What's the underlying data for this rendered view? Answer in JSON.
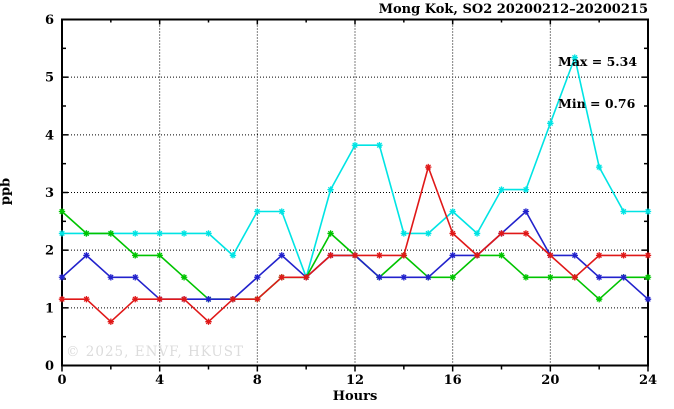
{
  "header": {
    "title": "Mong Kok, SO2 20200212–20200215"
  },
  "annotations": {
    "max": "Max = 5.34",
    "min": "Min = 0.76"
  },
  "watermark": "© 2025, ENVF, HKUST",
  "chart_data": {
    "type": "line",
    "title": "Mong Kok, SO2 20200212–20200215",
    "xlabel": "Hours",
    "ylabel": "ppb",
    "xlim": [
      0,
      24
    ],
    "ylim": [
      0,
      6
    ],
    "xticks": [
      0,
      4,
      8,
      12,
      16,
      20,
      24
    ],
    "yticks": [
      0,
      1,
      2,
      3,
      4,
      5,
      6
    ],
    "x_minor_step": 2,
    "y_minor_step": 0.5,
    "grid": "dotted horizontal at y=1..5, dotted vertical at x=4,8,12,16,20",
    "legend": "none",
    "marker": "asterisk",
    "stats": {
      "max": 5.34,
      "min": 0.76
    },
    "x": [
      0,
      1,
      2,
      3,
      4,
      5,
      6,
      7,
      8,
      9,
      10,
      11,
      12,
      13,
      14,
      15,
      16,
      17,
      18,
      19,
      20,
      21,
      22,
      23,
      24
    ],
    "series": [
      {
        "name": "series-cyan",
        "color": "#00E4E4",
        "values": [
          2.29,
          2.29,
          2.29,
          2.29,
          2.29,
          2.29,
          2.29,
          1.91,
          2.67,
          2.67,
          1.53,
          3.05,
          3.82,
          3.82,
          2.29,
          2.29,
          2.67,
          2.29,
          3.05,
          3.05,
          4.2,
          5.34,
          3.44,
          2.67,
          2.67
        ]
      },
      {
        "name": "series-green",
        "color": "#00C400",
        "values": [
          2.67,
          2.29,
          2.29,
          1.91,
          1.91,
          1.53,
          1.15,
          1.15,
          1.15,
          1.53,
          1.53,
          2.29,
          1.91,
          1.53,
          1.91,
          1.53,
          1.53,
          1.91,
          1.91,
          1.53,
          1.53,
          1.53,
          1.15,
          1.53,
          1.53
        ]
      },
      {
        "name": "series-blue",
        "color": "#2222CC",
        "values": [
          1.53,
          1.91,
          1.53,
          1.53,
          1.15,
          1.15,
          1.15,
          1.15,
          1.53,
          1.91,
          1.53,
          1.91,
          1.91,
          1.53,
          1.53,
          1.53,
          1.91,
          1.91,
          2.29,
          2.67,
          1.91,
          1.91,
          1.53,
          1.53,
          1.15
        ]
      },
      {
        "name": "series-red",
        "color": "#E01818",
        "values": [
          1.15,
          1.15,
          0.76,
          1.15,
          1.15,
          1.15,
          0.76,
          1.15,
          1.15,
          1.53,
          1.53,
          1.91,
          1.91,
          1.91,
          1.91,
          3.44,
          2.29,
          1.91,
          2.29,
          2.29,
          1.91,
          1.53,
          1.91,
          1.91,
          1.91
        ]
      }
    ]
  }
}
